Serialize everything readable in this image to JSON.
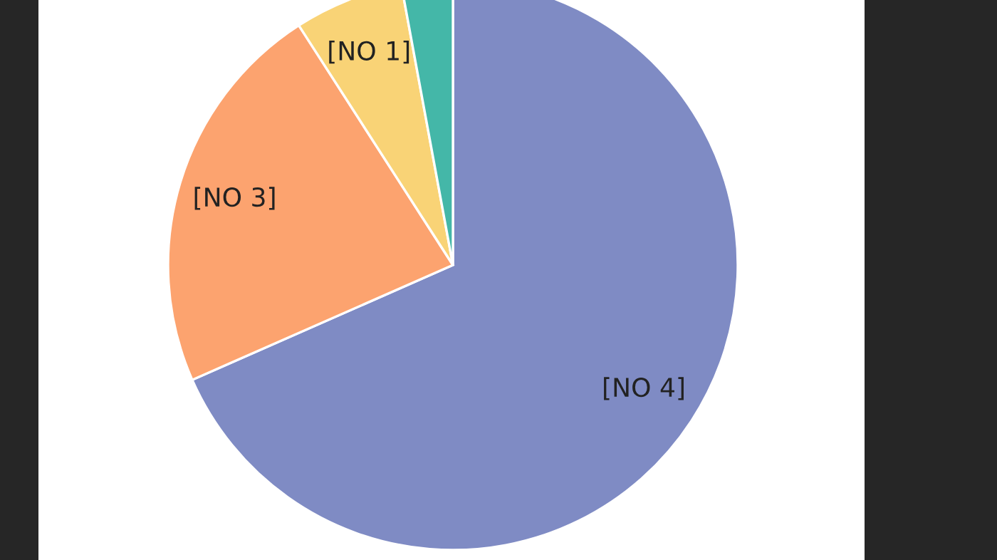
{
  "chart_data": {
    "type": "pie",
    "categories": [
      "[NO 4]",
      "[NO 3]",
      "[NO 1]",
      null
    ],
    "values": [
      68.4,
      22.5,
      6.2,
      2.9
    ],
    "colors": [
      "#7f8bc4",
      "#fca36f",
      "#f9d376",
      "#44b7a8"
    ]
  }
}
